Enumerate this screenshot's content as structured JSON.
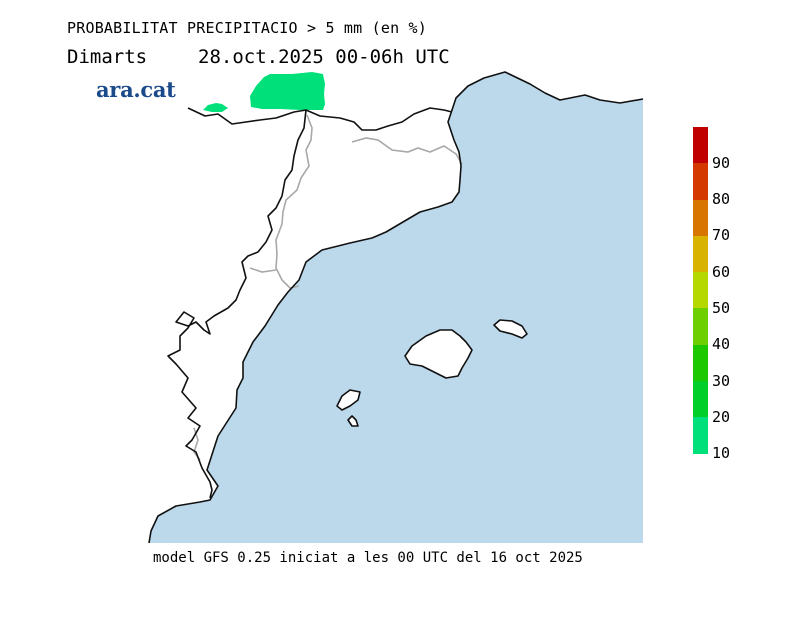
{
  "header": {
    "title": "PROBABILITAT PRECIPITACIO > 5 mm (en %)",
    "day": "Dimarts",
    "period": "28.oct.2025 00-06h UTC"
  },
  "logo": {
    "text": "ara.cat",
    "color": "#1b4a8a"
  },
  "footer": {
    "text": "model GFS 0.25 iniciat a les 00 UTC del 16 oct 2025"
  },
  "map": {
    "sea_color": "#bcd9eb",
    "land_color": "#ffffff",
    "precip_color": "#00e07a"
  },
  "legend": {
    "labels": [
      "90",
      "80",
      "70",
      "60",
      "50",
      "40",
      "30",
      "20",
      "10"
    ],
    "colors": [
      "#c00000",
      "#d43a00",
      "#d87500",
      "#d8b400",
      "#b4d800",
      "#6ecf00",
      "#1ec800",
      "#00cf2a",
      "#00e07a"
    ]
  }
}
